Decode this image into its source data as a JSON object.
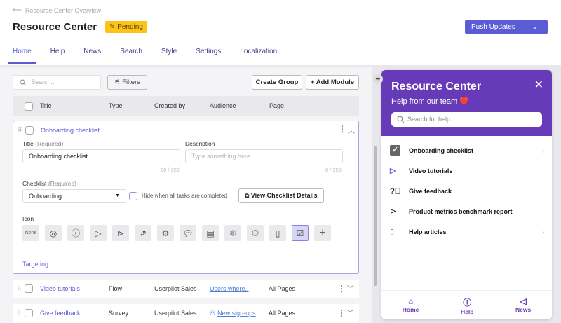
{
  "header": {
    "back_label": "Resource Center Overview",
    "title": "Resource Center",
    "status": "Pending",
    "push_label": "Push Updates"
  },
  "tabs": [
    "Home",
    "Help",
    "News",
    "Search",
    "Style",
    "Settings",
    "Localization"
  ],
  "toolbar": {
    "search_placeholder": "Search..",
    "filters": "Filters",
    "create_group": "Create Group",
    "add_module": "Add Module"
  },
  "table": {
    "columns": [
      "Title",
      "Type",
      "Created by",
      "Audience",
      "Page"
    ]
  },
  "expanded": {
    "name": "Onboarding checklist",
    "title_label": "Title",
    "required": "(Required)",
    "title_value": "Onboarding checklist",
    "title_count": "20 / 255",
    "desc_label": "Description",
    "desc_placeholder": "Type something here..",
    "desc_count": "0 / 255",
    "checklist_label": "Checklist",
    "checklist_value": "Onboarding",
    "hide_label": "Hide when all tasks are completed",
    "view_details": "View Checklist Details",
    "icon_label": "Icon",
    "icon_none": "None",
    "selected_icon": "checkbox-icon",
    "targeting": "Targeting"
  },
  "rows": [
    {
      "title": "Video tutorials",
      "type": "Flow",
      "created_by": "Userpilot Sales",
      "audience": "Users where..",
      "page": "All Pages"
    },
    {
      "title": "Give feedback",
      "type": "Survey",
      "created_by": "Userpilot Sales",
      "audience": "New sign-ups",
      "page": "All Pages"
    }
  ],
  "widget": {
    "title": "Resource Center",
    "subtitle": "Help from our team ❤️",
    "search_placeholder": "Search for help",
    "items": [
      "Onboarding checklist",
      "Video tutorials",
      "Give feedback",
      "Product metrics benchmark report",
      "Help articles"
    ],
    "nav": [
      "Home",
      "Help",
      "News"
    ],
    "color": "#673ab7"
  },
  "colors": {
    "accent": "#5b5bd6",
    "pending": "#fcc419"
  }
}
